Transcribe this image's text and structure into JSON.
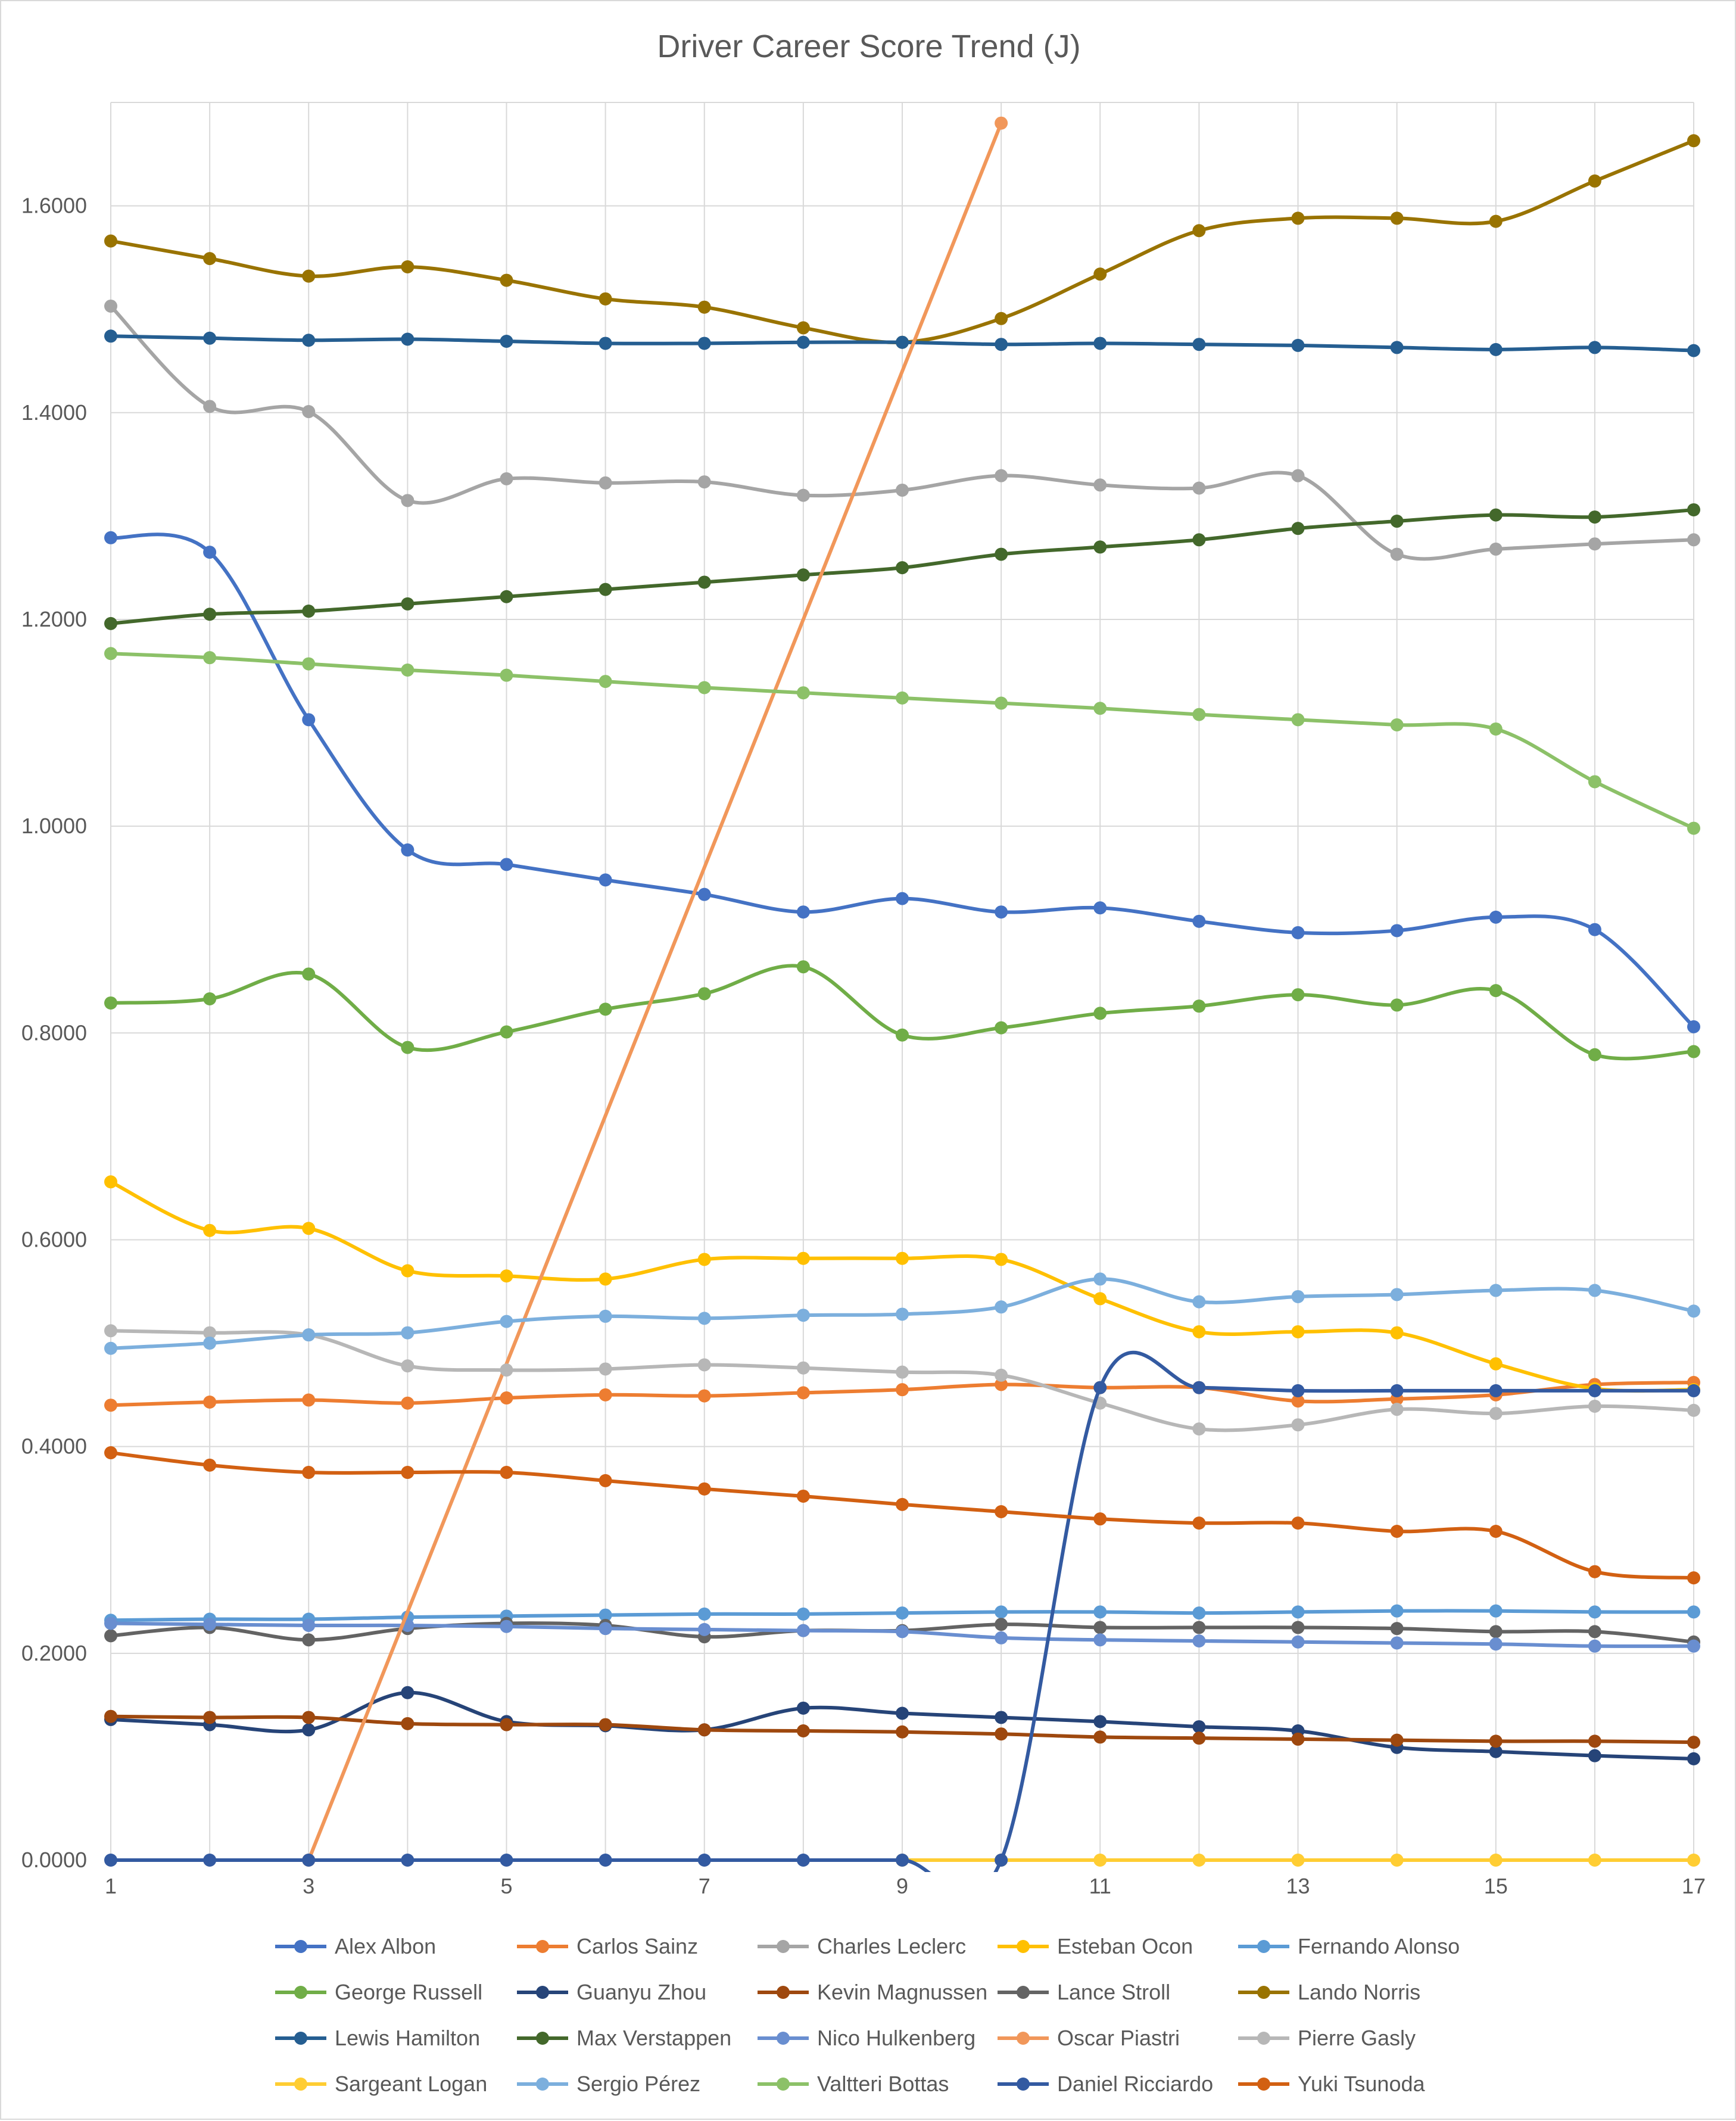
{
  "chart_data": {
    "type": "line",
    "title": "Driver Career Score Trend (J)",
    "xlabel": "",
    "ylabel": "",
    "x": [
      1,
      2,
      3,
      4,
      5,
      6,
      7,
      8,
      9,
      10,
      11,
      12,
      13,
      14,
      15,
      16,
      17
    ],
    "x_tick_labels": [
      "1",
      "3",
      "5",
      "7",
      "9",
      "11",
      "13",
      "15",
      "17"
    ],
    "x_tick_values": [
      1,
      3,
      5,
      7,
      9,
      11,
      13,
      15,
      17
    ],
    "y_tick_labels": [
      "0.0000",
      "0.2000",
      "0.4000",
      "0.6000",
      "0.8000",
      "1.0000",
      "1.2000",
      "1.4000",
      "1.6000"
    ],
    "y_tick_values": [
      0,
      0.2,
      0.4,
      0.6,
      0.8,
      1.0,
      1.2,
      1.4,
      1.6
    ],
    "ylim": [
      0,
      1.7
    ],
    "xlim": [
      1,
      17
    ],
    "grid": true,
    "smooth": true,
    "legend_position": "bottom",
    "series": [
      {
        "name": "Alex Albon",
        "color": "#4472C4",
        "values": [
          1.279,
          1.265,
          1.103,
          0.977,
          0.963,
          0.948,
          0.934,
          0.917,
          0.93,
          0.917,
          0.921,
          0.908,
          0.897,
          0.899,
          0.912,
          0.9,
          0.806
        ]
      },
      {
        "name": "Carlos Sainz",
        "color": "#ED7D31",
        "values": [
          0.44,
          0.443,
          0.445,
          0.442,
          0.447,
          0.45,
          0.449,
          0.452,
          0.455,
          0.46,
          0.457,
          0.457,
          0.444,
          0.446,
          0.45,
          0.46,
          0.462
        ]
      },
      {
        "name": "Charles Leclerc",
        "color": "#A5A5A5",
        "values": [
          1.503,
          1.406,
          1.401,
          1.315,
          1.336,
          1.332,
          1.333,
          1.32,
          1.325,
          1.339,
          1.33,
          1.327,
          1.339,
          1.263,
          1.268,
          1.273,
          1.277
        ]
      },
      {
        "name": "Esteban Ocon",
        "color": "#FFC000",
        "values": [
          0.656,
          0.609,
          0.611,
          0.57,
          0.565,
          0.562,
          0.581,
          0.582,
          0.582,
          0.581,
          0.543,
          0.511,
          0.511,
          0.51,
          0.48,
          0.456,
          0.455
        ]
      },
      {
        "name": "Fernando Alonso",
        "color": "#5B9BD5",
        "values": [
          0.232,
          0.233,
          0.233,
          0.235,
          0.236,
          0.237,
          0.238,
          0.238,
          0.239,
          0.24,
          0.24,
          0.239,
          0.24,
          0.241,
          0.241,
          0.24,
          0.24
        ]
      },
      {
        "name": "George Russell",
        "color": "#70AD47",
        "values": [
          0.829,
          0.833,
          0.857,
          0.786,
          0.801,
          0.823,
          0.838,
          0.864,
          0.798,
          0.805,
          0.819,
          0.826,
          0.837,
          0.827,
          0.841,
          0.779,
          0.782
        ]
      },
      {
        "name": "Guanyu Zhou",
        "color": "#264478",
        "values": [
          0.136,
          0.131,
          0.126,
          0.162,
          0.134,
          0.13,
          0.126,
          0.147,
          0.142,
          0.138,
          0.134,
          0.129,
          0.125,
          0.109,
          0.105,
          0.101,
          0.098
        ]
      },
      {
        "name": "Kevin Magnussen",
        "color": "#9E480E",
        "values": [
          0.139,
          0.138,
          0.138,
          0.132,
          0.131,
          0.131,
          0.126,
          0.125,
          0.124,
          0.122,
          0.119,
          0.118,
          0.117,
          0.116,
          0.115,
          0.115,
          0.114
        ]
      },
      {
        "name": "Lance Stroll",
        "color": "#636363",
        "values": [
          0.217,
          0.225,
          0.213,
          0.224,
          0.229,
          0.227,
          0.216,
          0.222,
          0.222,
          0.228,
          0.225,
          0.225,
          0.225,
          0.224,
          0.221,
          0.221,
          0.211
        ]
      },
      {
        "name": "Lando Norris",
        "color": "#997300",
        "values": [
          1.566,
          1.549,
          1.532,
          1.541,
          1.528,
          1.51,
          1.502,
          1.482,
          1.468,
          1.491,
          1.534,
          1.576,
          1.588,
          1.588,
          1.585,
          1.624,
          1.663
        ]
      },
      {
        "name": "Lewis Hamilton",
        "color": "#255E91",
        "values": [
          1.474,
          1.472,
          1.47,
          1.471,
          1.469,
          1.467,
          1.467,
          1.468,
          1.468,
          1.466,
          1.467,
          1.466,
          1.465,
          1.463,
          1.461,
          1.463,
          1.46
        ]
      },
      {
        "name": "Max Verstappen",
        "color": "#43682B",
        "values": [
          1.196,
          1.205,
          1.208,
          1.215,
          1.222,
          1.229,
          1.236,
          1.243,
          1.25,
          1.263,
          1.27,
          1.277,
          1.288,
          1.295,
          1.301,
          1.299,
          1.306
        ]
      },
      {
        "name": "Nico Hulkenberg",
        "color": "#698ED0",
        "values": [
          0.229,
          0.228,
          0.227,
          0.227,
          0.226,
          0.224,
          0.223,
          0.222,
          0.221,
          0.215,
          0.213,
          0.212,
          0.211,
          0.21,
          0.209,
          0.207,
          0.207
        ]
      },
      {
        "name": "Oscar Piastri",
        "color": "#F1975A",
        "values": [
          null,
          null,
          0.0,
          null,
          null,
          null,
          null,
          null,
          null,
          1.68,
          null,
          null,
          null,
          null,
          null,
          null,
          null
        ]
      },
      {
        "name": "Pierre Gasly",
        "color": "#B7B7B7",
        "values": [
          0.512,
          0.51,
          0.508,
          0.478,
          0.474,
          0.475,
          0.479,
          0.476,
          0.472,
          0.469,
          0.442,
          0.417,
          0.421,
          0.436,
          0.432,
          0.439,
          0.435
        ]
      },
      {
        "name": "Sargeant Logan",
        "color": "#FFCD33",
        "values": [
          null,
          null,
          null,
          null,
          null,
          null,
          null,
          null,
          0.0,
          0.0,
          0.0,
          0.0,
          0.0,
          0.0,
          0.0,
          0.0,
          0.0
        ]
      },
      {
        "name": "Sergio Pérez",
        "color": "#7CAFDD",
        "values": [
          0.495,
          0.5,
          0.508,
          0.51,
          0.521,
          0.526,
          0.524,
          0.527,
          0.528,
          0.535,
          0.562,
          0.54,
          0.545,
          0.547,
          0.551,
          0.551,
          0.531
        ]
      },
      {
        "name": "Valtteri Bottas",
        "color": "#8CC168",
        "values": [
          1.167,
          1.163,
          1.157,
          1.151,
          1.146,
          1.14,
          1.134,
          1.129,
          1.124,
          1.119,
          1.114,
          1.108,
          1.103,
          1.098,
          1.094,
          1.043,
          0.998
        ]
      },
      {
        "name": "Daniel Ricciardo",
        "color": "#335AA1",
        "values": [
          0.0,
          0.0,
          0.0,
          0.0,
          0.0,
          0.0,
          0.0,
          0.0,
          0.0,
          0.0,
          0.457,
          0.457,
          0.454,
          0.454,
          0.454,
          0.454,
          0.454
        ]
      },
      {
        "name": "Yuki Tsunoda",
        "color": "#D26012",
        "values": [
          0.394,
          0.382,
          0.375,
          0.375,
          0.375,
          0.367,
          0.359,
          0.352,
          0.344,
          0.337,
          0.33,
          0.326,
          0.326,
          0.318,
          0.318,
          0.279,
          0.273
        ]
      }
    ]
  }
}
